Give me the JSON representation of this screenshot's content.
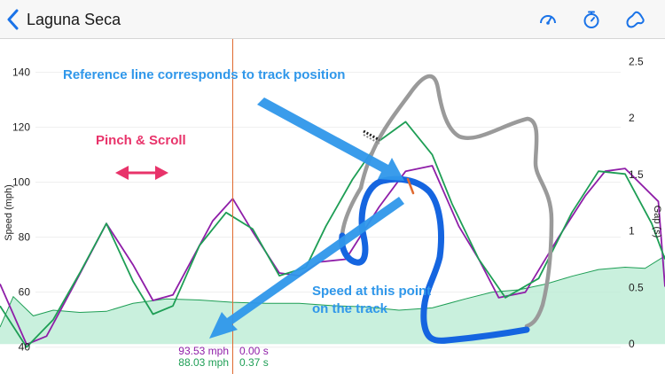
{
  "nav": {
    "back_title": "Laguna Seca",
    "icons": [
      "speedometer-icon",
      "stopwatch-icon",
      "track-map-icon"
    ]
  },
  "colors": {
    "accent": "#1a73e8",
    "purple": "#8f1ea8",
    "green": "#1e9e55",
    "fill": "#b7ebd1",
    "annotation_blue": "#2f97ea",
    "annotation_pink": "#e8336a",
    "reference_line": "#e06a30",
    "track_outline": "#9a9a9a",
    "track_highlight": "#1565e0"
  },
  "annotations": {
    "reference": "Reference line corresponds to track position",
    "pinch": "Pinch & Scroll",
    "speed_line1": "Speed at this point",
    "speed_line2": "on the track"
  },
  "readout": {
    "purple_speed": "93.53 mph",
    "purple_gap": "0.00 s",
    "green_speed": "88.03 mph",
    "green_gap": "0.37 s"
  },
  "chart_data": {
    "type": "line",
    "ylabel": "Speed (mph)",
    "y2label": "Gap (s)",
    "ylim": [
      37,
      146
    ],
    "y2lim": [
      -0.1,
      2.55
    ],
    "yticks": [
      "140",
      "120",
      "100",
      "80",
      "60",
      "40"
    ],
    "y2ticks": [
      "2.5",
      "2",
      "1.5",
      "1",
      "0.5",
      "0"
    ],
    "x_range": [
      0,
      1
    ],
    "reference_x": 0.35,
    "series": [
      {
        "key": "purple",
        "x": [
          0.0,
          0.04,
          0.07,
          0.11,
          0.16,
          0.2,
          0.23,
          0.26,
          0.32,
          0.35,
          0.38,
          0.42,
          0.45,
          0.48,
          0.52,
          0.57,
          0.61,
          0.65,
          0.69,
          0.72,
          0.75,
          0.79,
          0.84,
          0.88,
          0.91,
          0.94,
          0.99,
          1.0
        ],
        "y": [
          63,
          41,
          44,
          62,
          85,
          70,
          57,
          59,
          86,
          94,
          82,
          67,
          66,
          71,
          72,
          91,
          104,
          106,
          84,
          72,
          58,
          60,
          80,
          95,
          104,
          105,
          93,
          62
        ]
      },
      {
        "key": "green",
        "x": [
          0.0,
          0.04,
          0.08,
          0.12,
          0.16,
          0.2,
          0.23,
          0.26,
          0.3,
          0.34,
          0.38,
          0.42,
          0.46,
          0.49,
          0.53,
          0.57,
          0.61,
          0.65,
          0.68,
          0.72,
          0.76,
          0.81,
          0.86,
          0.9,
          0.94,
          0.98,
          1.0
        ],
        "y": [
          55,
          40,
          50,
          67,
          85,
          64,
          52,
          55,
          77,
          89,
          83,
          66,
          69,
          84,
          101,
          115,
          122,
          110,
          92,
          72,
          58,
          65,
          89,
          104,
          103,
          85,
          72
        ]
      }
    ],
    "gap_series": {
      "x": [
        0.0,
        0.02,
        0.05,
        0.08,
        0.12,
        0.16,
        0.2,
        0.25,
        0.3,
        0.35,
        0.4,
        0.45,
        0.5,
        0.55,
        0.6,
        0.65,
        0.7,
        0.74,
        0.78,
        0.82,
        0.86,
        0.9,
        0.94,
        0.97,
        1.0
      ],
      "y": [
        0.15,
        0.42,
        0.25,
        0.3,
        0.28,
        0.29,
        0.36,
        0.4,
        0.39,
        0.37,
        0.36,
        0.36,
        0.34,
        0.33,
        0.3,
        0.32,
        0.4,
        0.46,
        0.48,
        0.53,
        0.6,
        0.66,
        0.68,
        0.67,
        0.78
      ]
    },
    "grid": "horizontal",
    "legend": "none"
  }
}
